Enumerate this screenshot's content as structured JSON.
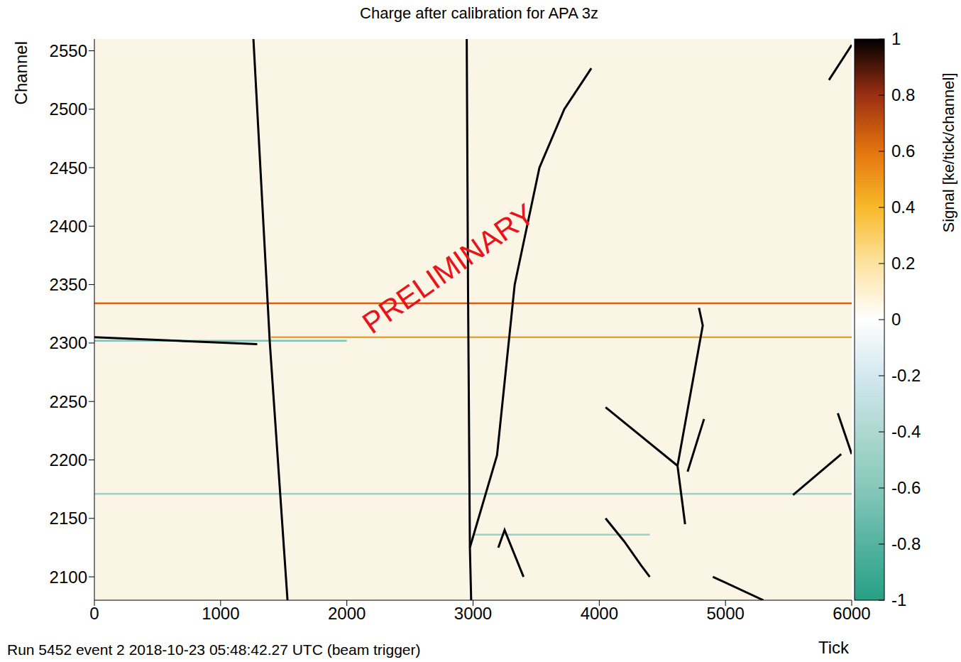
{
  "chart_data": {
    "type": "line",
    "title": "Charge after calibration for APA 3z",
    "subtitle": "Run 5452 event 2 2018-10-23 05:48:42.27 UTC (beam trigger)",
    "annotation": "PRELIMINARY",
    "x_label": "Tick",
    "y_label": "Channel",
    "xlim": [
      0,
      6000
    ],
    "ylim": [
      2080,
      2560
    ],
    "xticks": [
      0,
      1000,
      2000,
      3000,
      4000,
      5000,
      6000
    ],
    "yticks": [
      2100,
      2150,
      2200,
      2250,
      2300,
      2350,
      2400,
      2450,
      2500,
      2550
    ],
    "grid": false,
    "colorbar": {
      "label": "Signal [ke/tick/channel]",
      "range": [
        -1,
        1
      ],
      "ticks": [
        -1,
        -0.8,
        -0.6,
        -0.4,
        -0.2,
        0,
        0.2,
        0.4,
        0.6,
        0.8,
        1
      ],
      "colors": [
        "#26a085",
        "#55b3a0",
        "#86c8bb",
        "#aed8d2",
        "#d3e8ef",
        "#ffffff",
        "#fde3a0",
        "#f8b92a",
        "#e4740d",
        "#9b2f13",
        "#000000"
      ]
    },
    "series": [
      {
        "color": "#d95f0e",
        "x": [
          0,
          6000
        ],
        "values": [
          2334,
          2334
        ]
      },
      {
        "color": "#f0a030",
        "x": [
          1400,
          6000
        ],
        "values": [
          2305,
          2305
        ]
      },
      {
        "color": "#7fc4b8",
        "x": [
          0,
          2000
        ],
        "values": [
          2302,
          2302
        ]
      },
      {
        "color": "#9fd0c8",
        "x": [
          0,
          6000
        ],
        "values": [
          2171,
          2171
        ]
      },
      {
        "color": "#9fd0c8",
        "x": [
          3000,
          4400
        ],
        "values": [
          2136,
          2136
        ]
      },
      {
        "color": "#000000",
        "x": [
          1260,
          1390,
          1530
        ],
        "values": [
          2560,
          2300,
          2080
        ]
      },
      {
        "color": "#000000",
        "x": [
          2950,
          2960,
          2975,
          2985
        ],
        "values": [
          2560,
          2350,
          2125,
          2080
        ]
      },
      {
        "color": "#000000",
        "x": [
          2975,
          3190,
          3330,
          3526,
          3723,
          3937
        ],
        "values": [
          2125,
          2204,
          2350,
          2450,
          2500,
          2535
        ]
      },
      {
        "color": "#000000",
        "x": [
          0,
          1290
        ],
        "values": [
          2305,
          2299
        ]
      },
      {
        "color": "#000000",
        "x": [
          4050,
          4620
        ],
        "values": [
          2245,
          2195
        ]
      },
      {
        "color": "#000000",
        "x": [
          4620,
          4820,
          4790
        ],
        "values": [
          2195,
          2315,
          2330
        ]
      },
      {
        "color": "#000000",
        "x": [
          4620,
          4680
        ],
        "values": [
          2195,
          2145
        ]
      },
      {
        "color": "#000000",
        "x": [
          4830,
          4700
        ],
        "values": [
          2235,
          2190
        ]
      },
      {
        "color": "#000000",
        "x": [
          4050,
          4200,
          4330,
          4400
        ],
        "values": [
          2150,
          2130,
          2110,
          2100
        ]
      },
      {
        "color": "#000000",
        "x": [
          4900,
          5300
        ],
        "values": [
          2100,
          2080
        ]
      },
      {
        "color": "#000000",
        "x": [
          5535,
          5917
        ],
        "values": [
          2170,
          2205
        ]
      },
      {
        "color": "#000000",
        "x": [
          5890,
          6000
        ],
        "values": [
          2240,
          2205
        ]
      },
      {
        "color": "#000000",
        "x": [
          5820,
          6000
        ],
        "values": [
          2525,
          2555
        ]
      },
      {
        "color": "#000000",
        "x": [
          3200,
          3250,
          3400
        ],
        "values": [
          2125,
          2140,
          2100
        ]
      }
    ]
  }
}
